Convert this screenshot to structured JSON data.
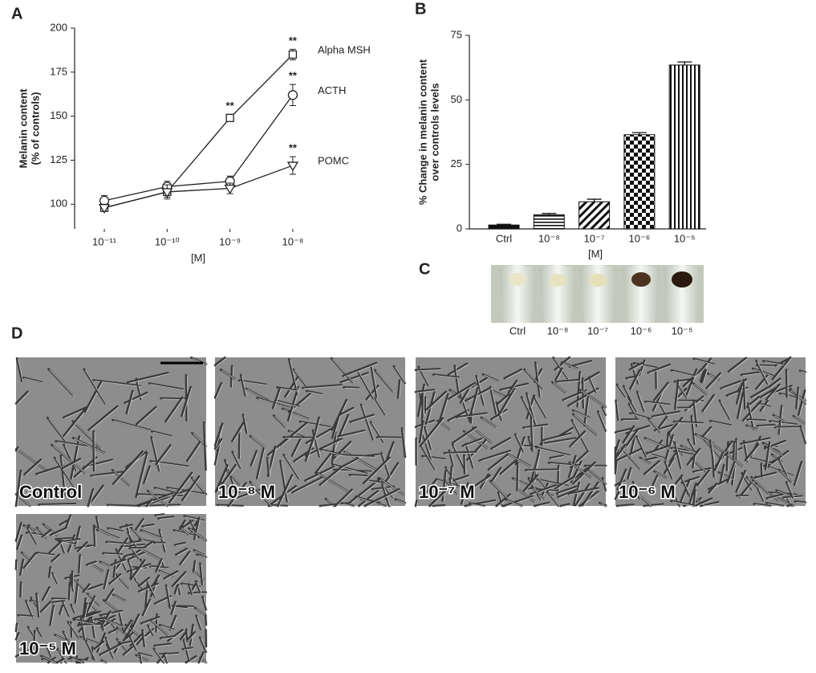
{
  "panel_labels": [
    "A",
    "B",
    "C",
    "D"
  ],
  "chart_data": [
    {
      "type": "line",
      "categories": [
        "10⁻¹¹",
        "10⁻¹⁰",
        "10⁻⁹",
        "10⁻⁸"
      ],
      "x_label": "[M]",
      "y_label": [
        "Melanin content",
        "(% of controls)"
      ],
      "ylim": [
        86,
        200
      ],
      "yticks": [
        100,
        125,
        150,
        175,
        200
      ],
      "color": "#222222",
      "series": [
        {
          "name": "Alpha MSH",
          "marker": "square",
          "values": [
            98,
            107,
            149,
            185
          ],
          "errors": [
            2,
            3,
            2,
            3
          ],
          "significance": [
            null,
            null,
            "**",
            "**"
          ]
        },
        {
          "name": "ACTH",
          "marker": "circle",
          "values": [
            102,
            110,
            113,
            162
          ],
          "errors": [
            3,
            3,
            3,
            6
          ],
          "significance": [
            null,
            null,
            null,
            "**"
          ]
        },
        {
          "name": "POMC",
          "marker": "triangle-down",
          "values": [
            98,
            107,
            109,
            122
          ],
          "errors": [
            2,
            4,
            3,
            5
          ],
          "significance": [
            null,
            null,
            null,
            "**"
          ]
        }
      ]
    },
    {
      "type": "bar",
      "categories": [
        "Ctrl",
        "10⁻⁸",
        "10⁻⁷",
        "10⁻⁶",
        "10⁻⁵"
      ],
      "values": [
        1.5,
        5.5,
        10.5,
        36.5,
        63.5
      ],
      "errors": [
        0.3,
        0.5,
        1,
        0.8,
        1.2
      ],
      "x_label": "[M]",
      "y_label": [
        "% Change in melanin content",
        "over controls levels"
      ],
      "ylim": [
        0,
        75
      ],
      "yticks": [
        0,
        25,
        50,
        75
      ],
      "color": "#111111"
    }
  ],
  "panel_c": {
    "labels": [
      "Ctrl",
      "10⁻⁸",
      "10⁻⁷",
      "10⁻⁶",
      "10⁻⁵"
    ]
  },
  "panel_d": {
    "labels": [
      "Control",
      "10⁻⁸ M",
      "10⁻⁷ M",
      "10⁻⁶ M",
      "10⁻⁵ M"
    ]
  }
}
